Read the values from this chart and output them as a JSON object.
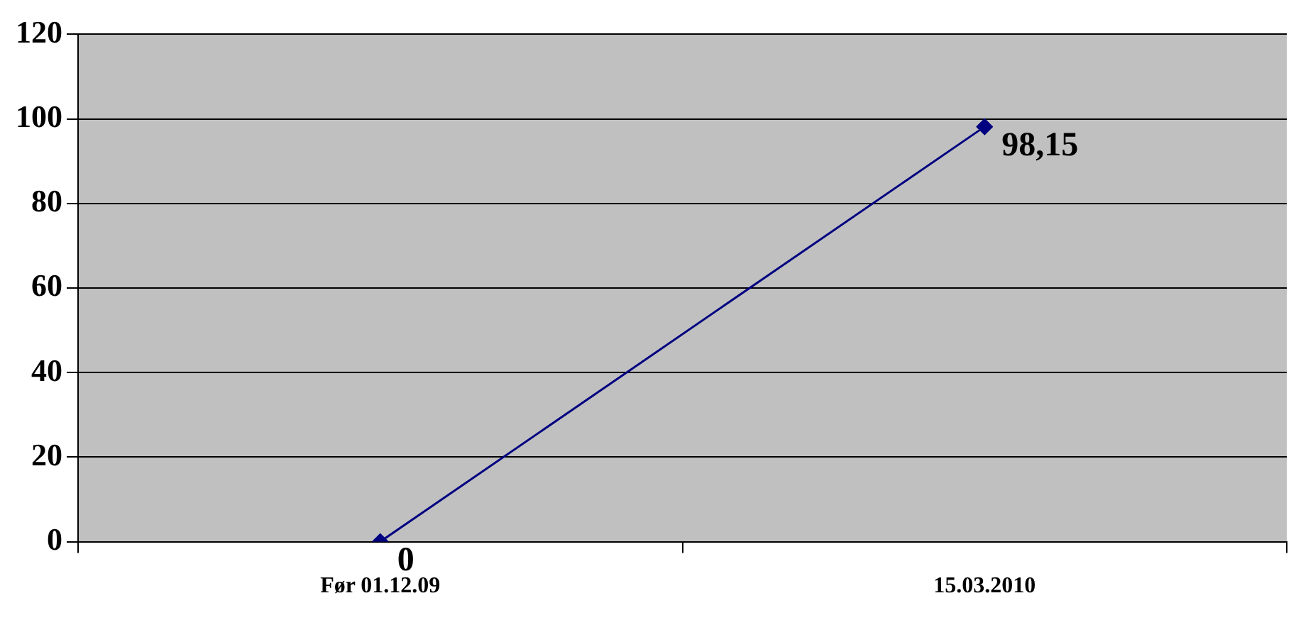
{
  "chart_data": {
    "type": "line",
    "categories": [
      "Før 01.12.09",
      "15.03.2010"
    ],
    "series": [
      {
        "color": "#000080",
        "values": [
          0,
          98.15
        ],
        "value_labels": [
          "0",
          "98,15"
        ]
      }
    ],
    "ylim": [
      0,
      120
    ],
    "yticks": [
      0,
      20,
      40,
      60,
      80,
      100,
      120
    ],
    "grid": "y",
    "legend": false,
    "marker": "diamond",
    "line_style": "solid"
  }
}
